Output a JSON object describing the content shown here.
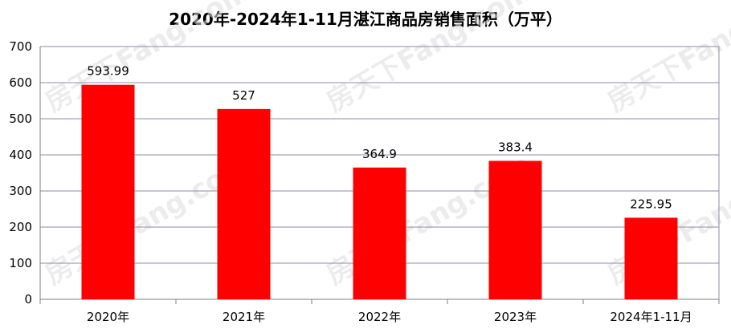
{
  "chart_data": {
    "type": "bar",
    "title": "2020年-2024年1-11月湛江商品房销售面积（万平）",
    "categories": [
      "2020年",
      "2021年",
      "2022年",
      "2023年",
      "2024年1-11月"
    ],
    "values": [
      593.99,
      527,
      364.9,
      383.4,
      225.95
    ],
    "value_labels": [
      "593.99",
      "527",
      "364.9",
      "383.4",
      "225.95"
    ],
    "ylim": [
      0,
      700
    ],
    "yticks": [
      0,
      100,
      200,
      300,
      400,
      500,
      600,
      700
    ],
    "grid": true,
    "legend": "none",
    "bar_color": "#ff0000",
    "grid_color": "#8b8ba7"
  },
  "watermark": "房天下Fang.com"
}
